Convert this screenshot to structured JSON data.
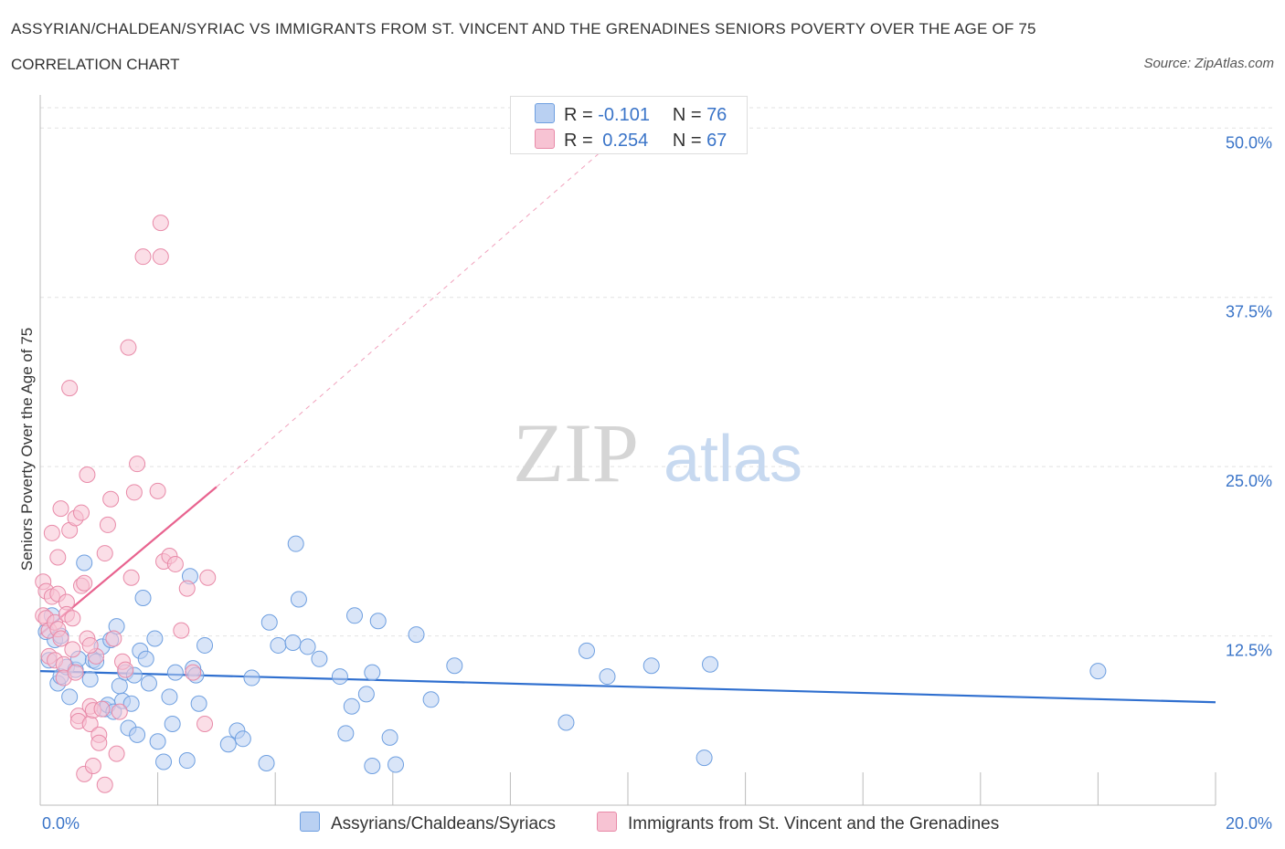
{
  "title": "ASSYRIAN/CHALDEAN/SYRIAC VS IMMIGRANTS FROM ST. VINCENT AND THE GRENADINES SENIORS POVERTY OVER THE AGE OF 75",
  "subtitle": "CORRELATION CHART",
  "source": "Source: ZipAtlas.com",
  "watermark": {
    "zip": "ZIP",
    "atlas": "atlas"
  },
  "legend": {
    "r_label": "R =",
    "n_label": "N =",
    "series1": {
      "r": "-0.101",
      "n": "76"
    },
    "series2": {
      "r": "0.254",
      "n": "67"
    }
  },
  "bottom_legend": {
    "series1": "Assyrians/Chaldeans/Syriacs",
    "series2": "Immigrants from St. Vincent and the Grenadines"
  },
  "colors": {
    "blue_fill": "#b9d0f2",
    "blue_stroke": "#6e9fe0",
    "blue_line": "#2f6fcf",
    "pink_fill": "#f7c3d3",
    "pink_stroke": "#e88aa8",
    "pink_line": "#e8638f",
    "axis_label": "#3a74c8",
    "grid": "#e2e2e2"
  },
  "chart_data": {
    "type": "scatter",
    "title": "ASSYRIAN/CHALDEAN/SYRIAC VS IMMIGRANTS FROM ST. VINCENT AND THE GRENADINES SENIORS POVERTY OVER THE AGE OF 75",
    "xlabel": "",
    "ylabel": "Seniors Poverty Over the Age of 75",
    "xlim": [
      0,
      20
    ],
    "ylim": [
      0,
      51.5
    ],
    "x_tick_labels": [
      "0.0%",
      "20.0%"
    ],
    "y_ticks": [
      12.5,
      25.0,
      37.5,
      50.0
    ],
    "y_tick_labels": [
      "12.5%",
      "25.0%",
      "37.5%",
      "50.0%"
    ],
    "grid": true,
    "legend_position": "top-center",
    "series": [
      {
        "name": "Assyrians/Chaldeans/Syriacs",
        "color": "blue",
        "trend": {
          "x": [
            0,
            20
          ],
          "y": [
            9.9,
            7.6
          ],
          "style": "solid"
        },
        "points": [
          [
            0.1,
            12.8
          ],
          [
            0.15,
            10.7
          ],
          [
            0.2,
            14.0
          ],
          [
            0.25,
            12.2
          ],
          [
            0.3,
            9.0
          ],
          [
            0.35,
            9.5
          ],
          [
            0.45,
            10.2
          ],
          [
            0.5,
            8.0
          ],
          [
            0.6,
            10.0
          ],
          [
            0.65,
            10.8
          ],
          [
            0.75,
            17.9
          ],
          [
            0.85,
            9.3
          ],
          [
            0.9,
            10.7
          ],
          [
            0.95,
            10.6
          ],
          [
            1.05,
            11.7
          ],
          [
            1.1,
            7.1
          ],
          [
            1.15,
            7.4
          ],
          [
            1.2,
            12.2
          ],
          [
            1.25,
            6.9
          ],
          [
            1.3,
            13.2
          ],
          [
            1.35,
            8.8
          ],
          [
            1.4,
            7.7
          ],
          [
            1.45,
            9.8
          ],
          [
            1.5,
            5.7
          ],
          [
            1.55,
            7.5
          ],
          [
            1.65,
            5.2
          ],
          [
            1.7,
            11.4
          ],
          [
            1.75,
            15.3
          ],
          [
            1.8,
            10.8
          ],
          [
            1.85,
            9.0
          ],
          [
            1.95,
            12.3
          ],
          [
            2.0,
            4.7
          ],
          [
            2.1,
            3.2
          ],
          [
            2.2,
            8.0
          ],
          [
            2.25,
            6.0
          ],
          [
            2.3,
            9.8
          ],
          [
            2.5,
            3.3
          ],
          [
            2.55,
            16.9
          ],
          [
            2.6,
            10.1
          ],
          [
            2.65,
            9.6
          ],
          [
            2.7,
            7.5
          ],
          [
            2.8,
            11.8
          ],
          [
            3.2,
            4.5
          ],
          [
            3.35,
            5.5
          ],
          [
            3.45,
            4.9
          ],
          [
            3.6,
            9.4
          ],
          [
            3.85,
            3.1
          ],
          [
            3.9,
            13.5
          ],
          [
            4.05,
            11.8
          ],
          [
            4.3,
            12.0
          ],
          [
            4.35,
            19.3
          ],
          [
            4.4,
            15.2
          ],
          [
            4.55,
            11.7
          ],
          [
            4.75,
            10.8
          ],
          [
            5.1,
            9.5
          ],
          [
            5.2,
            5.3
          ],
          [
            5.3,
            7.3
          ],
          [
            5.35,
            14.0
          ],
          [
            5.55,
            8.2
          ],
          [
            5.65,
            9.8
          ],
          [
            5.65,
            2.9
          ],
          [
            5.75,
            13.6
          ],
          [
            5.95,
            5.0
          ],
          [
            6.05,
            3.0
          ],
          [
            6.4,
            12.6
          ],
          [
            6.65,
            7.8
          ],
          [
            7.05,
            10.3
          ],
          [
            8.95,
            6.1
          ],
          [
            9.3,
            11.4
          ],
          [
            9.65,
            9.5
          ],
          [
            10.4,
            10.3
          ],
          [
            11.3,
            3.5
          ],
          [
            11.4,
            10.4
          ],
          [
            18.0,
            9.9
          ],
          [
            0.35,
            12.5
          ],
          [
            1.6,
            9.6
          ]
        ]
      },
      {
        "name": "Immigrants from St. Vincent and the Grenadines",
        "color": "pink",
        "trend": {
          "x": [
            0,
            3.0
          ],
          "y": [
            12.6,
            23.5
          ],
          "style": "solid",
          "extended_to": [
            10.4,
            51.5
          ],
          "extension_style": "dashed"
        },
        "points": [
          [
            0.05,
            16.5
          ],
          [
            0.05,
            14.0
          ],
          [
            0.1,
            15.8
          ],
          [
            0.1,
            13.8
          ],
          [
            0.15,
            12.9
          ],
          [
            0.15,
            11.0
          ],
          [
            0.2,
            15.4
          ],
          [
            0.2,
            20.1
          ],
          [
            0.25,
            13.5
          ],
          [
            0.25,
            10.7
          ],
          [
            0.3,
            15.6
          ],
          [
            0.3,
            13.0
          ],
          [
            0.3,
            18.3
          ],
          [
            0.35,
            12.3
          ],
          [
            0.35,
            21.9
          ],
          [
            0.4,
            10.4
          ],
          [
            0.4,
            9.4
          ],
          [
            0.45,
            15.0
          ],
          [
            0.45,
            14.1
          ],
          [
            0.5,
            20.3
          ],
          [
            0.5,
            30.8
          ],
          [
            0.55,
            13.8
          ],
          [
            0.55,
            11.5
          ],
          [
            0.6,
            21.2
          ],
          [
            0.6,
            9.8
          ],
          [
            0.65,
            6.6
          ],
          [
            0.65,
            6.2
          ],
          [
            0.7,
            21.6
          ],
          [
            0.7,
            16.2
          ],
          [
            0.75,
            16.4
          ],
          [
            0.75,
            2.3
          ],
          [
            0.8,
            24.4
          ],
          [
            0.8,
            12.3
          ],
          [
            0.85,
            7.3
          ],
          [
            0.85,
            6.0
          ],
          [
            0.9,
            7.0
          ],
          [
            0.9,
            2.9
          ],
          [
            0.95,
            11.0
          ],
          [
            1.0,
            5.2
          ],
          [
            1.0,
            4.6
          ],
          [
            1.05,
            7.1
          ],
          [
            1.1,
            1.5
          ],
          [
            1.1,
            18.6
          ],
          [
            1.15,
            20.7
          ],
          [
            1.2,
            22.6
          ],
          [
            1.25,
            12.3
          ],
          [
            1.3,
            3.8
          ],
          [
            1.35,
            6.9
          ],
          [
            1.4,
            10.6
          ],
          [
            1.45,
            10.0
          ],
          [
            1.5,
            33.8
          ],
          [
            1.55,
            16.8
          ],
          [
            1.6,
            23.1
          ],
          [
            1.65,
            25.2
          ],
          [
            1.75,
            40.5
          ],
          [
            2.0,
            23.2
          ],
          [
            2.05,
            43.0
          ],
          [
            2.05,
            40.5
          ],
          [
            2.1,
            18.0
          ],
          [
            2.2,
            18.4
          ],
          [
            2.3,
            17.8
          ],
          [
            2.4,
            12.9
          ],
          [
            2.5,
            16.0
          ],
          [
            2.6,
            9.8
          ],
          [
            2.8,
            6.0
          ],
          [
            2.85,
            16.8
          ],
          [
            0.85,
            11.8
          ]
        ]
      }
    ]
  }
}
